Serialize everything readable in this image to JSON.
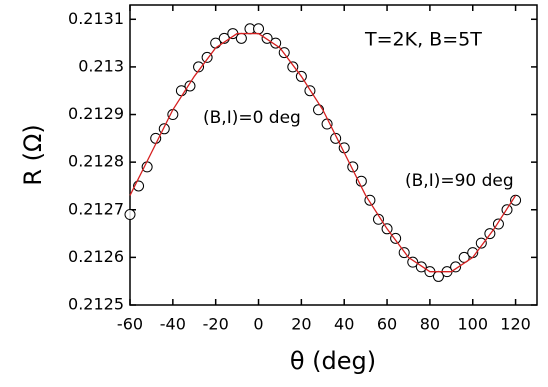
{
  "chart_data": {
    "type": "scatter",
    "xlabel": "θ (deg)",
    "ylabel": "R (Ω)",
    "annotations": [
      "T=2K, B=5T",
      "(B,I)=0 deg",
      "(B,I)=90 deg"
    ],
    "xlim": [
      -60,
      130
    ],
    "xticks": [
      -60,
      -40,
      -20,
      0,
      20,
      40,
      60,
      80,
      100,
      120
    ],
    "ylim": [
      0.2125,
      0.21313
    ],
    "yticks": [
      0.2125,
      0.2126,
      0.2127,
      0.2128,
      0.2129,
      0.213,
      0.2131
    ],
    "series": [
      {
        "kind": "points",
        "color": "#000000",
        "x": [
          -60,
          -56,
          -52,
          -48,
          -44,
          -40,
          -36,
          -32,
          -28,
          -24,
          -20,
          -16,
          -12,
          -8,
          -4,
          0,
          4,
          8,
          12,
          16,
          20,
          24,
          28,
          32,
          36,
          40,
          44,
          48,
          52,
          56,
          60,
          64,
          68,
          72,
          76,
          80,
          84,
          88,
          92,
          96,
          100,
          104,
          108,
          112,
          116,
          120
        ],
        "values": [
          0.21269,
          0.21275,
          0.21279,
          0.21285,
          0.21287,
          0.2129,
          0.21295,
          0.21296,
          0.213,
          0.21302,
          0.21305,
          0.21306,
          0.21307,
          0.21306,
          0.21308,
          0.21308,
          0.21306,
          0.21305,
          0.21303,
          0.213,
          0.21298,
          0.21295,
          0.21291,
          0.21288,
          0.21285,
          0.21283,
          0.21279,
          0.21276,
          0.21272,
          0.21268,
          0.21266,
          0.21264,
          0.21261,
          0.21259,
          0.21258,
          0.21257,
          0.21256,
          0.21257,
          0.21258,
          0.2126,
          0.21261,
          0.21263,
          0.21265,
          0.21267,
          0.2127,
          0.21272
        ]
      },
      {
        "kind": "line",
        "color": "#d62020",
        "x": [
          -60,
          -50,
          -40,
          -30,
          -20,
          -10,
          0,
          10,
          20,
          30,
          40,
          50,
          60,
          70,
          80,
          90,
          100,
          110,
          120
        ],
        "values": [
          0.21273,
          0.21282,
          0.21291,
          0.21298,
          0.21304,
          0.21307,
          0.21307,
          0.21304,
          0.21298,
          0.21291,
          0.21282,
          0.21273,
          0.21266,
          0.2126,
          0.21257,
          0.21257,
          0.2126,
          0.21266,
          0.21273
        ]
      }
    ]
  }
}
